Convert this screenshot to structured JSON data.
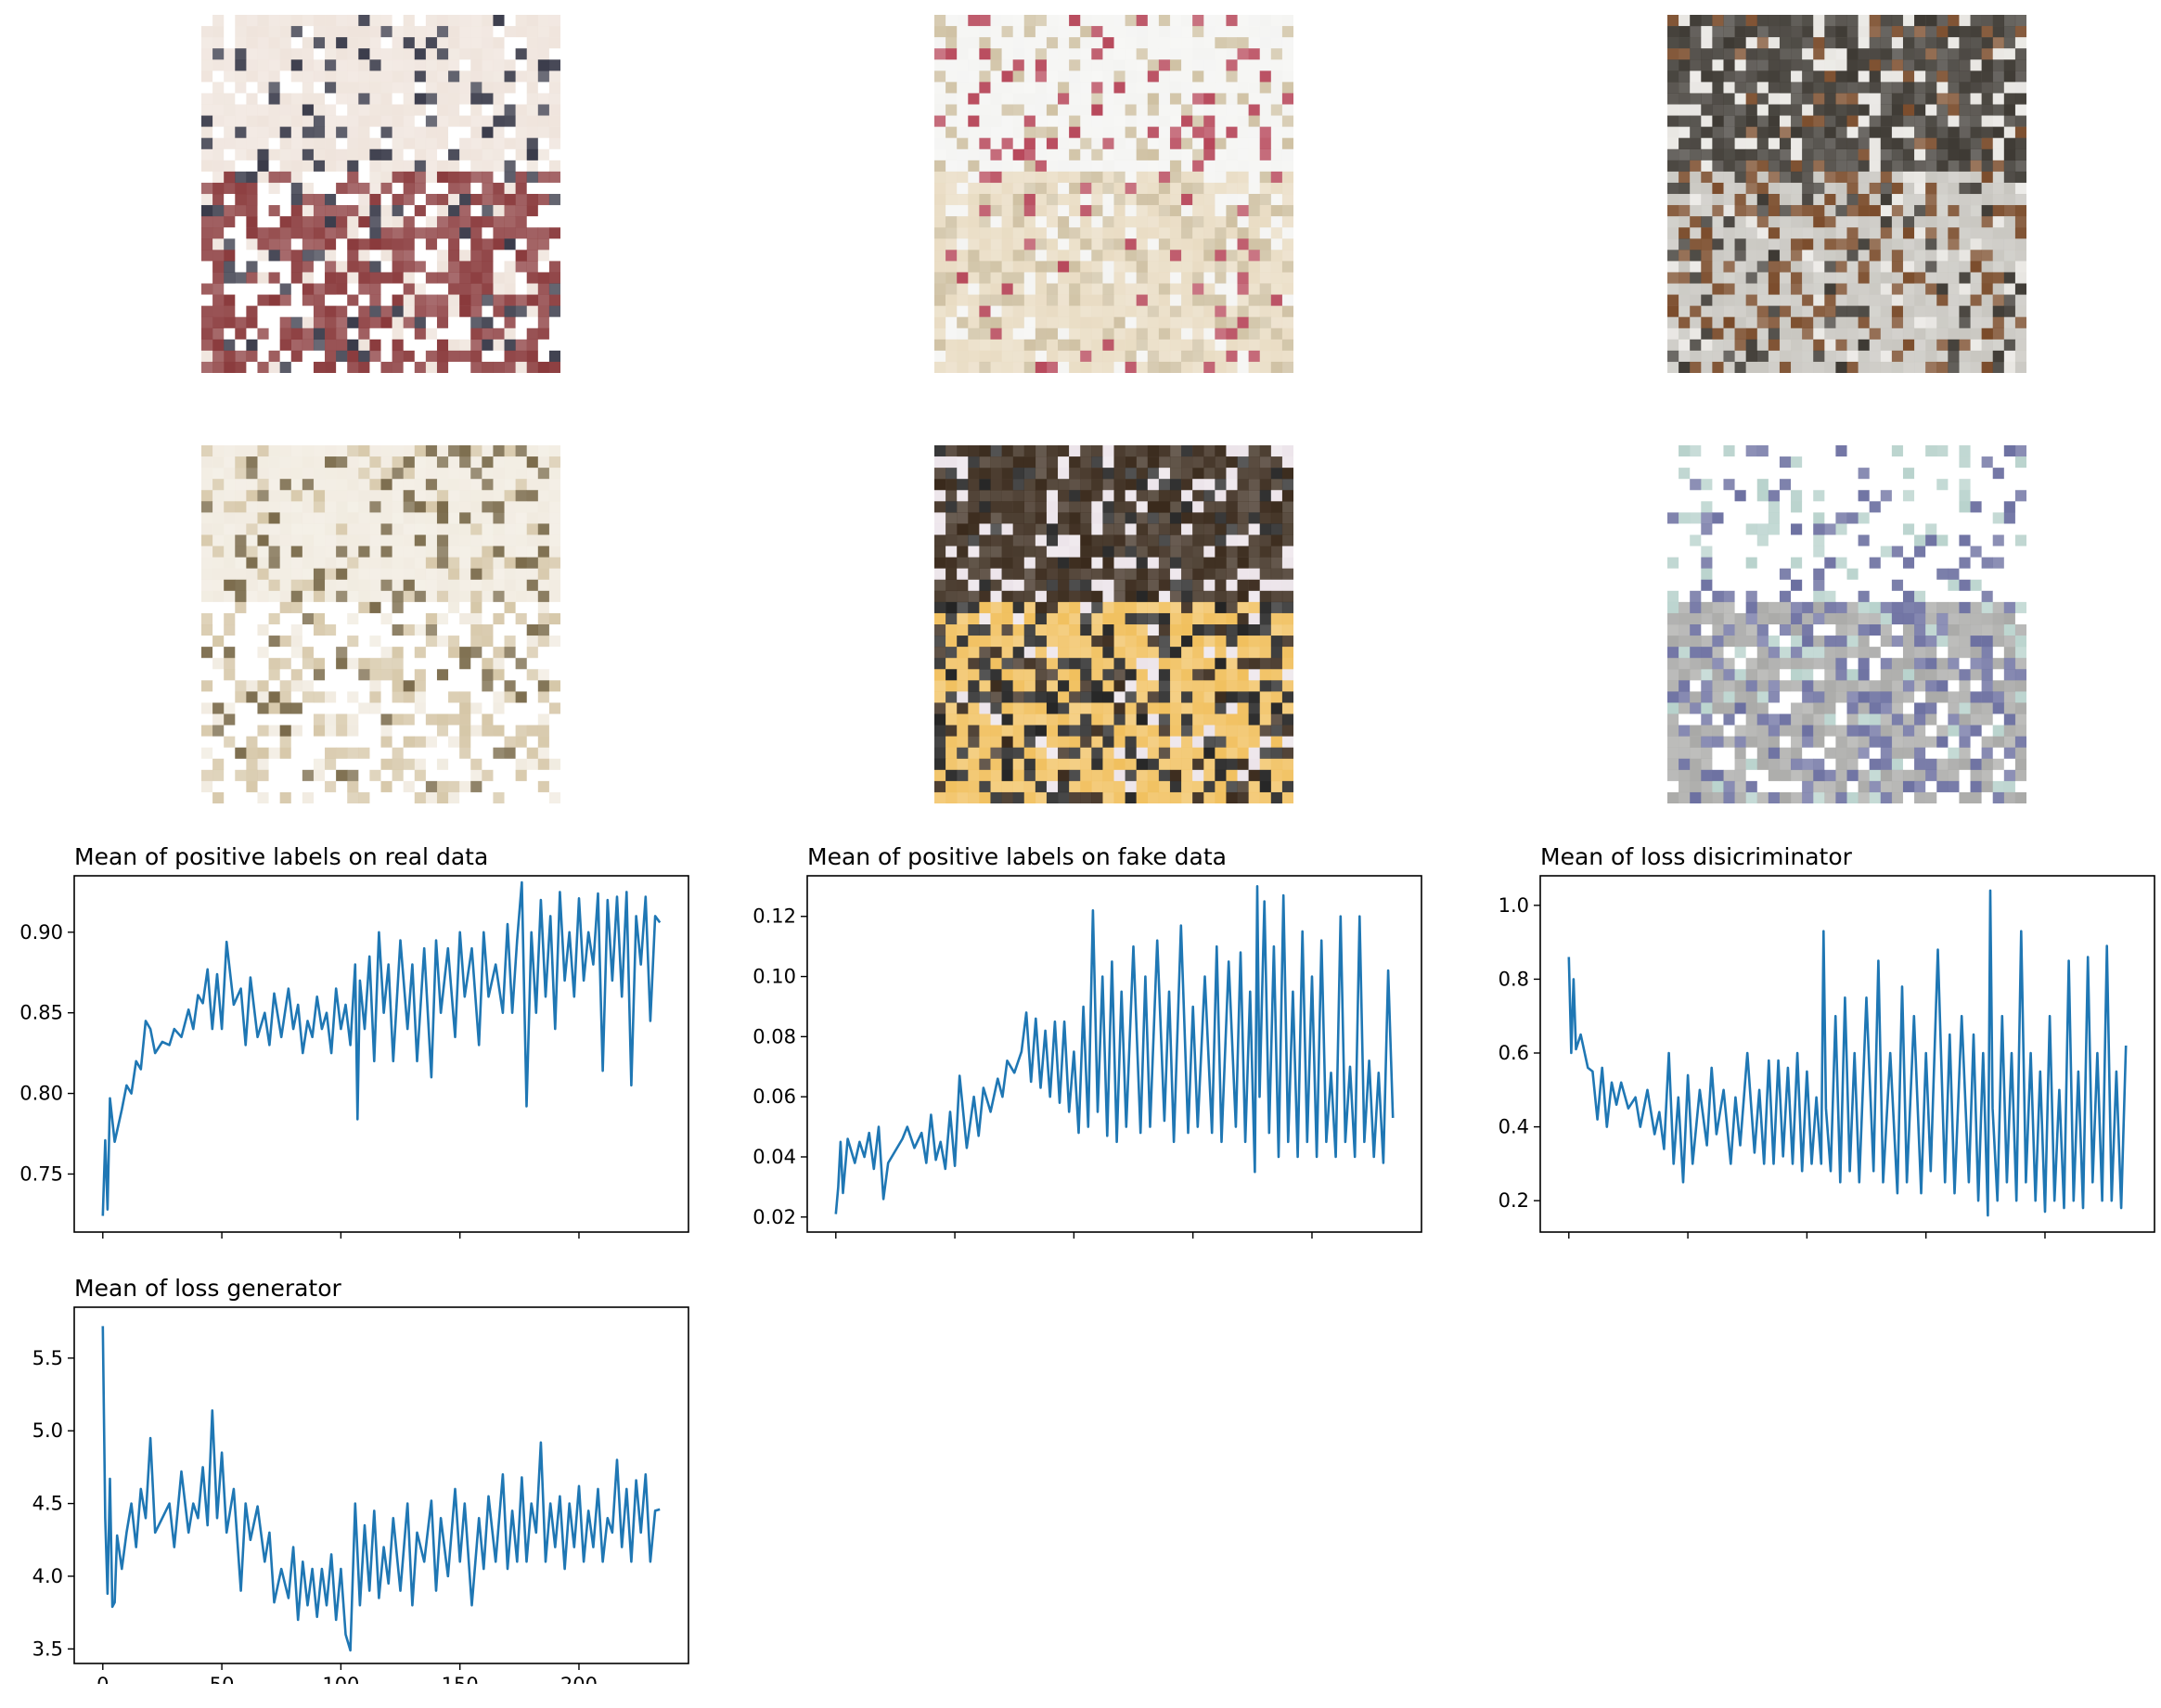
{
  "figure": {
    "samples": [
      {
        "palette": [
          "#efe4dc",
          "#8a3a3c",
          "#3a3b4a",
          "#ffffff"
        ]
      },
      {
        "palette": [
          "#f4f4f2",
          "#e9dcc3",
          "#b7475a",
          "#cfc1a3"
        ]
      },
      {
        "palette": [
          "#3e3a34",
          "#c8c6c0",
          "#e8e6e2",
          "#7a4b2a"
        ]
      },
      {
        "palette": [
          "#f1ebe0",
          "#ffffff",
          "#7a6a4a",
          "#d6c7a8"
        ]
      },
      {
        "palette": [
          "#3a2a1c",
          "#f1c05e",
          "#ece4ea",
          "#242424"
        ]
      },
      {
        "palette": [
          "#ffffff",
          "#a9a9a7",
          "#b8d2cc",
          "#6b6fa0"
        ]
      }
    ],
    "line_color": "#1f77b4"
  },
  "chart_data": [
    {
      "type": "line",
      "title": "Mean of positive labels on real data",
      "xlim": [
        -12,
        246
      ],
      "ylim": [
        0.714,
        0.935
      ],
      "xticks": [
        0,
        50,
        100,
        150,
        200
      ],
      "yticks": [
        0.75,
        0.8,
        0.85,
        0.9
      ],
      "ytick_labels": [
        "0.75",
        "0.80",
        "0.85",
        "0.90"
      ],
      "x": [
        0,
        1,
        2,
        3,
        5,
        8,
        10,
        12,
        14,
        16,
        18,
        20,
        22,
        25,
        28,
        30,
        33,
        36,
        38,
        40,
        42,
        44,
        46,
        48,
        50,
        52,
        55,
        58,
        60,
        62,
        65,
        68,
        70,
        72,
        75,
        78,
        80,
        82,
        84,
        86,
        88,
        90,
        92,
        94,
        96,
        98,
        100,
        102,
        104,
        106,
        107,
        108,
        110,
        112,
        114,
        116,
        118,
        120,
        122,
        125,
        128,
        130,
        132,
        135,
        138,
        140,
        142,
        145,
        148,
        150,
        152,
        155,
        158,
        160,
        162,
        165,
        168,
        170,
        172,
        174,
        176,
        178,
        180,
        182,
        184,
        186,
        188,
        190,
        192,
        194,
        196,
        198,
        200,
        202,
        204,
        206,
        208,
        210,
        212,
        214,
        216,
        218,
        220,
        222,
        224,
        226,
        228,
        230,
        232,
        234
      ],
      "y": [
        0.724,
        0.771,
        0.728,
        0.797,
        0.77,
        0.79,
        0.805,
        0.8,
        0.82,
        0.815,
        0.845,
        0.84,
        0.825,
        0.832,
        0.83,
        0.84,
        0.835,
        0.852,
        0.84,
        0.861,
        0.856,
        0.877,
        0.84,
        0.874,
        0.84,
        0.894,
        0.855,
        0.865,
        0.83,
        0.872,
        0.835,
        0.85,
        0.83,
        0.862,
        0.835,
        0.865,
        0.84,
        0.855,
        0.825,
        0.845,
        0.835,
        0.86,
        0.84,
        0.85,
        0.825,
        0.865,
        0.84,
        0.855,
        0.83,
        0.88,
        0.784,
        0.87,
        0.84,
        0.885,
        0.82,
        0.9,
        0.85,
        0.88,
        0.82,
        0.895,
        0.84,
        0.88,
        0.82,
        0.89,
        0.81,
        0.895,
        0.85,
        0.89,
        0.835,
        0.9,
        0.86,
        0.89,
        0.83,
        0.9,
        0.86,
        0.88,
        0.85,
        0.905,
        0.85,
        0.895,
        0.931,
        0.792,
        0.9,
        0.85,
        0.92,
        0.86,
        0.91,
        0.84,
        0.925,
        0.87,
        0.9,
        0.86,
        0.921,
        0.87,
        0.9,
        0.88,
        0.924,
        0.814,
        0.92,
        0.87,
        0.922,
        0.86,
        0.925,
        0.805,
        0.91,
        0.88,
        0.922,
        0.845,
        0.91,
        0.906
      ]
    },
    {
      "type": "line",
      "title": "Mean of positive labels on fake data",
      "xlim": [
        -12,
        246
      ],
      "ylim": [
        0.015,
        0.1335
      ],
      "xticks": [
        0,
        50,
        100,
        150,
        200
      ],
      "yticks": [
        0.02,
        0.04,
        0.06,
        0.08,
        0.1,
        0.12
      ],
      "ytick_labels": [
        "0.02",
        "0.04",
        "0.06",
        "0.08",
        "0.10",
        "0.12"
      ],
      "x": [
        0,
        1,
        2,
        3,
        5,
        8,
        10,
        12,
        14,
        16,
        18,
        20,
        22,
        25,
        28,
        30,
        33,
        36,
        38,
        40,
        42,
        44,
        46,
        48,
        50,
        52,
        55,
        58,
        60,
        62,
        65,
        68,
        70,
        72,
        75,
        78,
        80,
        82,
        84,
        86,
        88,
        90,
        92,
        94,
        96,
        98,
        100,
        102,
        104,
        106,
        108,
        110,
        112,
        114,
        116,
        118,
        120,
        122,
        125,
        128,
        130,
        132,
        135,
        138,
        140,
        142,
        145,
        148,
        150,
        152,
        155,
        158,
        160,
        162,
        165,
        168,
        170,
        172,
        174,
        176,
        177,
        178,
        180,
        182,
        184,
        186,
        188,
        190,
        192,
        194,
        196,
        198,
        200,
        202,
        204,
        206,
        208,
        210,
        212,
        214,
        216,
        218,
        220,
        222,
        224,
        226,
        228,
        230,
        232,
        234
      ],
      "y": [
        0.021,
        0.03,
        0.045,
        0.028,
        0.046,
        0.038,
        0.045,
        0.04,
        0.048,
        0.036,
        0.05,
        0.026,
        0.038,
        0.042,
        0.046,
        0.05,
        0.043,
        0.048,
        0.038,
        0.054,
        0.039,
        0.045,
        0.036,
        0.055,
        0.037,
        0.067,
        0.043,
        0.06,
        0.047,
        0.063,
        0.055,
        0.066,
        0.06,
        0.072,
        0.068,
        0.075,
        0.088,
        0.065,
        0.086,
        0.063,
        0.082,
        0.06,
        0.085,
        0.058,
        0.085,
        0.055,
        0.075,
        0.048,
        0.09,
        0.05,
        0.122,
        0.055,
        0.1,
        0.047,
        0.105,
        0.045,
        0.095,
        0.05,
        0.11,
        0.048,
        0.1,
        0.05,
        0.112,
        0.052,
        0.095,
        0.045,
        0.117,
        0.048,
        0.09,
        0.05,
        0.1,
        0.048,
        0.11,
        0.045,
        0.105,
        0.05,
        0.108,
        0.045,
        0.095,
        0.035,
        0.13,
        0.06,
        0.125,
        0.048,
        0.11,
        0.04,
        0.127,
        0.045,
        0.095,
        0.04,
        0.115,
        0.045,
        0.1,
        0.04,
        0.112,
        0.045,
        0.068,
        0.04,
        0.12,
        0.045,
        0.07,
        0.04,
        0.12,
        0.045,
        0.072,
        0.04,
        0.068,
        0.038,
        0.102,
        0.053
      ]
    },
    {
      "type": "line",
      "title": "Mean of loss disicriminator",
      "xlim": [
        -12,
        246
      ],
      "ylim": [
        0.115,
        1.08
      ],
      "xticks": [
        0,
        50,
        100,
        150,
        200
      ],
      "yticks": [
        0.2,
        0.4,
        0.6,
        0.8,
        1.0
      ],
      "ytick_labels": [
        "0.2",
        "0.4",
        "0.6",
        "0.8",
        "1.0"
      ],
      "x": [
        0,
        1,
        2,
        3,
        5,
        8,
        10,
        12,
        14,
        16,
        18,
        20,
        22,
        25,
        28,
        30,
        33,
        36,
        38,
        40,
        42,
        44,
        46,
        48,
        50,
        52,
        55,
        58,
        60,
        62,
        65,
        68,
        70,
        72,
        75,
        78,
        80,
        82,
        84,
        86,
        88,
        90,
        92,
        94,
        96,
        98,
        100,
        102,
        104,
        106,
        107,
        108,
        110,
        112,
        114,
        116,
        118,
        120,
        122,
        125,
        128,
        130,
        132,
        135,
        138,
        140,
        142,
        145,
        148,
        150,
        152,
        155,
        158,
        160,
        162,
        165,
        168,
        170,
        172,
        174,
        176,
        177,
        178,
        180,
        182,
        184,
        186,
        188,
        190,
        192,
        194,
        196,
        198,
        200,
        202,
        204,
        206,
        208,
        210,
        212,
        214,
        216,
        218,
        220,
        222,
        224,
        226,
        228,
        230,
        232,
        234
      ],
      "y": [
        0.86,
        0.6,
        0.8,
        0.61,
        0.65,
        0.56,
        0.55,
        0.42,
        0.56,
        0.4,
        0.52,
        0.46,
        0.52,
        0.45,
        0.48,
        0.4,
        0.5,
        0.38,
        0.44,
        0.34,
        0.6,
        0.3,
        0.48,
        0.25,
        0.54,
        0.3,
        0.5,
        0.35,
        0.56,
        0.38,
        0.5,
        0.3,
        0.48,
        0.35,
        0.6,
        0.33,
        0.5,
        0.3,
        0.58,
        0.3,
        0.58,
        0.32,
        0.56,
        0.3,
        0.6,
        0.28,
        0.55,
        0.3,
        0.48,
        0.3,
        0.93,
        0.45,
        0.28,
        0.7,
        0.25,
        0.75,
        0.28,
        0.6,
        0.25,
        0.75,
        0.28,
        0.85,
        0.25,
        0.6,
        0.22,
        0.78,
        0.25,
        0.7,
        0.22,
        0.6,
        0.28,
        0.88,
        0.25,
        0.65,
        0.22,
        0.7,
        0.25,
        0.65,
        0.2,
        0.6,
        0.16,
        1.04,
        0.45,
        0.2,
        0.7,
        0.25,
        0.6,
        0.2,
        0.93,
        0.25,
        0.6,
        0.2,
        0.55,
        0.17,
        0.7,
        0.2,
        0.5,
        0.18,
        0.85,
        0.2,
        0.55,
        0.18,
        0.86,
        0.25,
        0.6,
        0.2,
        0.89,
        0.2,
        0.55,
        0.18,
        0.62
      ]
    },
    {
      "type": "line",
      "title": "Mean of loss generator",
      "xlim": [
        -12,
        246
      ],
      "ylim": [
        3.4,
        5.85
      ],
      "xticks": [
        0,
        50,
        100,
        150,
        200
      ],
      "yticks": [
        3.5,
        4.0,
        4.5,
        5.0,
        5.5
      ],
      "ytick_labels": [
        "3.5",
        "4.0",
        "4.5",
        "5.0",
        "5.5"
      ],
      "x": [
        0,
        1,
        2,
        3,
        4,
        5,
        6,
        8,
        10,
        12,
        14,
        16,
        18,
        20,
        22,
        25,
        28,
        30,
        33,
        36,
        38,
        40,
        42,
        44,
        46,
        48,
        50,
        52,
        55,
        58,
        60,
        62,
        65,
        68,
        70,
        72,
        75,
        78,
        80,
        82,
        84,
        86,
        88,
        90,
        92,
        94,
        96,
        98,
        100,
        102,
        104,
        106,
        108,
        110,
        112,
        114,
        116,
        118,
        120,
        122,
        125,
        128,
        130,
        132,
        135,
        138,
        140,
        142,
        145,
        148,
        150,
        152,
        155,
        158,
        160,
        162,
        165,
        168,
        170,
        172,
        174,
        176,
        178,
        180,
        182,
        184,
        186,
        188,
        190,
        192,
        194,
        196,
        198,
        200,
        202,
        204,
        206,
        208,
        210,
        212,
        214,
        216,
        218,
        220,
        222,
        224,
        226,
        228,
        230,
        232,
        234
      ],
      "y": [
        5.72,
        4.4,
        3.88,
        4.67,
        3.79,
        3.82,
        4.28,
        4.05,
        4.3,
        4.5,
        4.2,
        4.6,
        4.4,
        4.95,
        4.3,
        4.4,
        4.5,
        4.2,
        4.72,
        4.3,
        4.5,
        4.4,
        4.75,
        4.35,
        5.14,
        4.4,
        4.85,
        4.3,
        4.6,
        3.9,
        4.5,
        4.25,
        4.48,
        4.1,
        4.3,
        3.82,
        4.05,
        3.85,
        4.2,
        3.7,
        4.1,
        3.8,
        4.05,
        3.72,
        4.05,
        3.8,
        4.15,
        3.7,
        4.05,
        3.6,
        3.49,
        4.5,
        3.8,
        4.35,
        3.9,
        4.45,
        3.85,
        4.2,
        3.95,
        4.4,
        3.9,
        4.5,
        3.8,
        4.3,
        4.1,
        4.52,
        3.9,
        4.4,
        4.0,
        4.6,
        4.1,
        4.5,
        3.8,
        4.4,
        4.05,
        4.55,
        4.1,
        4.7,
        4.05,
        4.45,
        4.1,
        4.68,
        4.1,
        4.5,
        4.3,
        4.92,
        4.1,
        4.5,
        4.2,
        4.55,
        4.05,
        4.5,
        4.2,
        4.62,
        4.1,
        4.45,
        4.2,
        4.6,
        4.1,
        4.4,
        4.3,
        4.8,
        4.2,
        4.6,
        4.1,
        4.66,
        4.3,
        4.7,
        4.1,
        4.45,
        4.46
      ]
    }
  ]
}
